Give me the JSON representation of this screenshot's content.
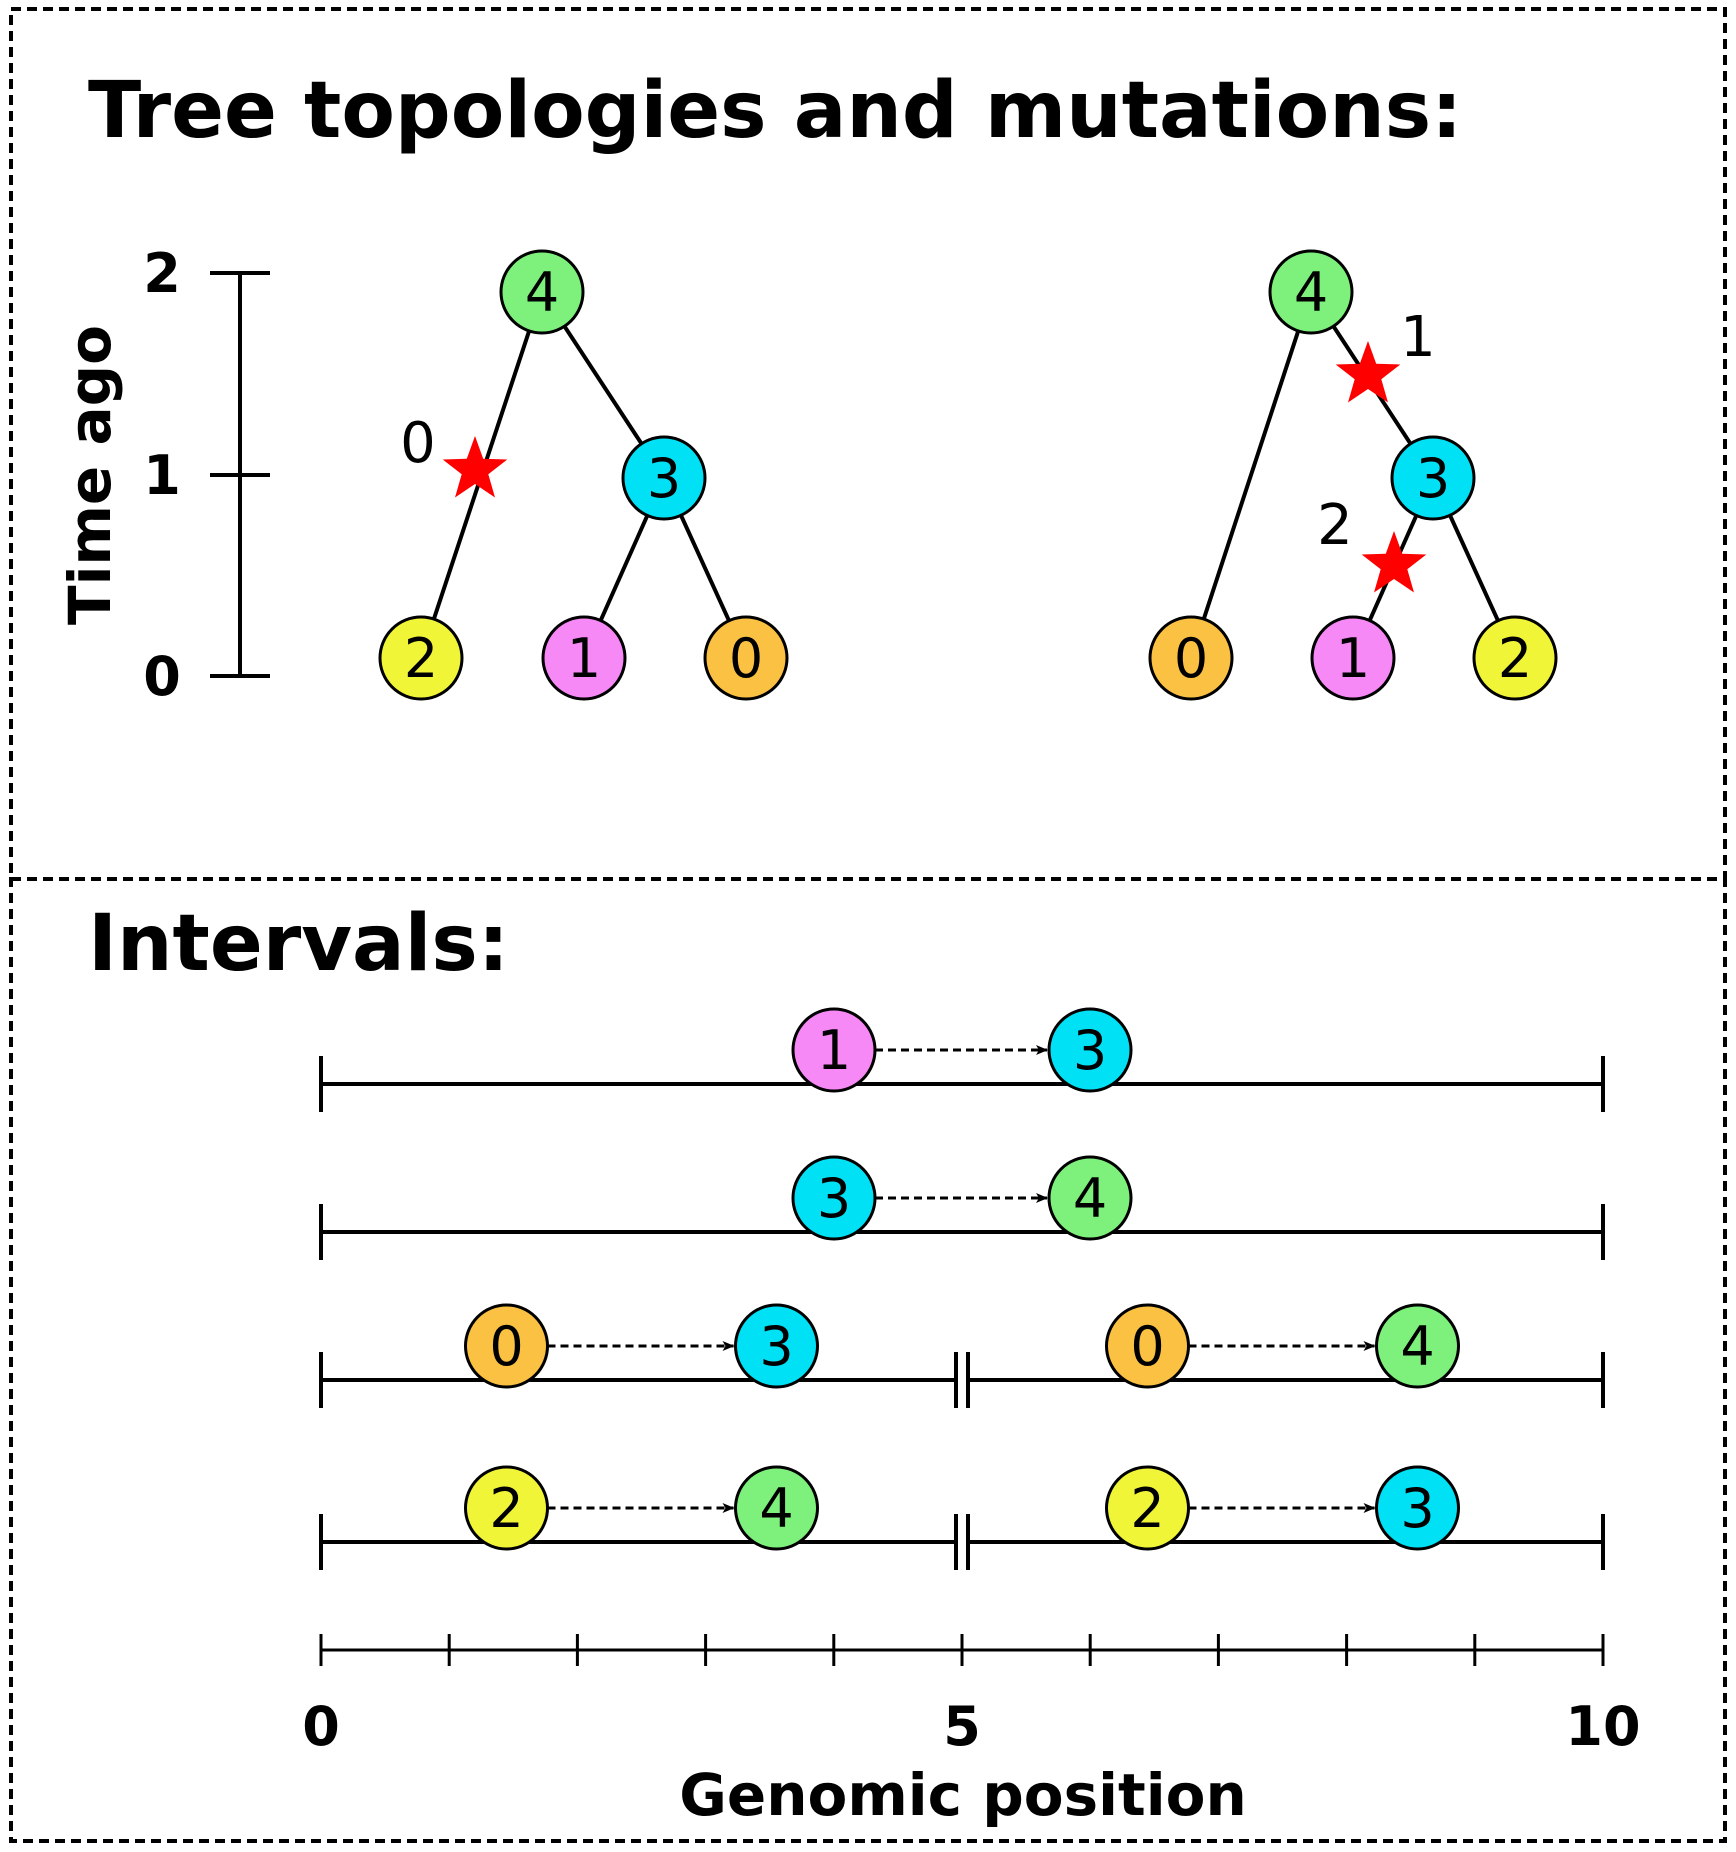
{
  "colors": {
    "0": "#fbc143",
    "1": "#f689f5",
    "2": "#f1f538",
    "3": "#00e1f6",
    "4": "#7ef17c",
    "mutation": "#ff0000",
    "line": "#000000"
  },
  "top_panel": {
    "title": "Tree topologies and mutations:",
    "time_axis": {
      "label": "Time ago",
      "ticks": [
        "0",
        "1",
        "2"
      ]
    },
    "trees": [
      {
        "nodes": [
          {
            "id": "4",
            "time": 2
          },
          {
            "id": "3",
            "time": 1
          },
          {
            "id": "2",
            "time": 0
          },
          {
            "id": "1",
            "time": 0
          },
          {
            "id": "0",
            "time": 0
          }
        ],
        "edges": [
          [
            "4",
            "2"
          ],
          [
            "4",
            "3"
          ],
          [
            "3",
            "1"
          ],
          [
            "3",
            "0"
          ]
        ],
        "mutations": [
          {
            "id": "0",
            "edge": [
              "4",
              "2"
            ]
          }
        ]
      },
      {
        "nodes": [
          {
            "id": "4",
            "time": 2
          },
          {
            "id": "3",
            "time": 1
          },
          {
            "id": "0",
            "time": 0
          },
          {
            "id": "1",
            "time": 0
          },
          {
            "id": "2",
            "time": 0
          }
        ],
        "edges": [
          [
            "4",
            "0"
          ],
          [
            "4",
            "3"
          ],
          [
            "3",
            "1"
          ],
          [
            "3",
            "2"
          ]
        ],
        "mutations": [
          {
            "id": "1",
            "edge": [
              "4",
              "3"
            ]
          },
          {
            "id": "2",
            "edge": [
              "3",
              "1"
            ]
          }
        ]
      }
    ]
  },
  "bottom_panel": {
    "title": "Intervals:",
    "rows": [
      {
        "segments": [
          {
            "left": 0,
            "right": 10,
            "child": "1",
            "parent": "3"
          }
        ]
      },
      {
        "segments": [
          {
            "left": 0,
            "right": 10,
            "child": "3",
            "parent": "4"
          }
        ]
      },
      {
        "segments": [
          {
            "left": 0,
            "right": 5,
            "child": "0",
            "parent": "3"
          },
          {
            "left": 5,
            "right": 10,
            "child": "0",
            "parent": "4"
          }
        ]
      },
      {
        "segments": [
          {
            "left": 0,
            "right": 5,
            "child": "2",
            "parent": "4"
          },
          {
            "left": 5,
            "right": 10,
            "child": "2",
            "parent": "3"
          }
        ]
      }
    ],
    "position_axis": {
      "label": "Genomic position",
      "min": 0,
      "max": 10,
      "labeled_ticks": [
        "0",
        "5",
        "10"
      ]
    }
  }
}
